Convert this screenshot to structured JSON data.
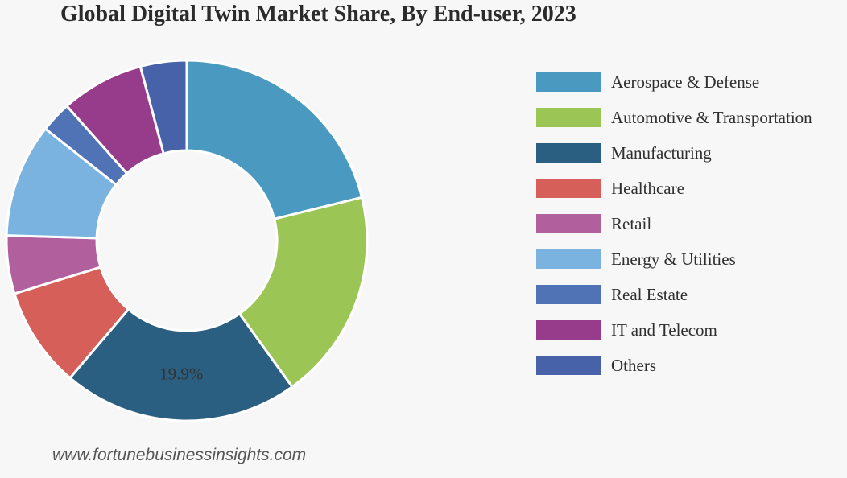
{
  "title": "Global Digital Twin Market Share, By End-user, 2023",
  "source": "www.fortunebusinessinsights.com",
  "chart_data": {
    "type": "pie",
    "donut": true,
    "title": "Global Digital Twin Market Share, By End-user, 2023",
    "unit": "%",
    "legend_position": "right",
    "categories": [
      "Aerospace & Defense",
      "Automotive & Transportation",
      "Manufacturing",
      "Healthcare",
      "Retail",
      "Energy & Utilities",
      "Real Estate",
      "IT and Telecom",
      "Others"
    ],
    "values": [
      19.9,
      17.8,
      19.9,
      8.5,
      4.9,
      9.6,
      2.6,
      7.0,
      3.9
    ],
    "colors": [
      "#4a99c0",
      "#9bc656",
      "#2b5f82",
      "#d65f5a",
      "#b25f9e",
      "#7bb3e0",
      "#5073b6",
      "#963c8a",
      "#4862a9"
    ],
    "data_labels": [
      {
        "category": "Manufacturing",
        "text": "19.9%"
      }
    ]
  }
}
